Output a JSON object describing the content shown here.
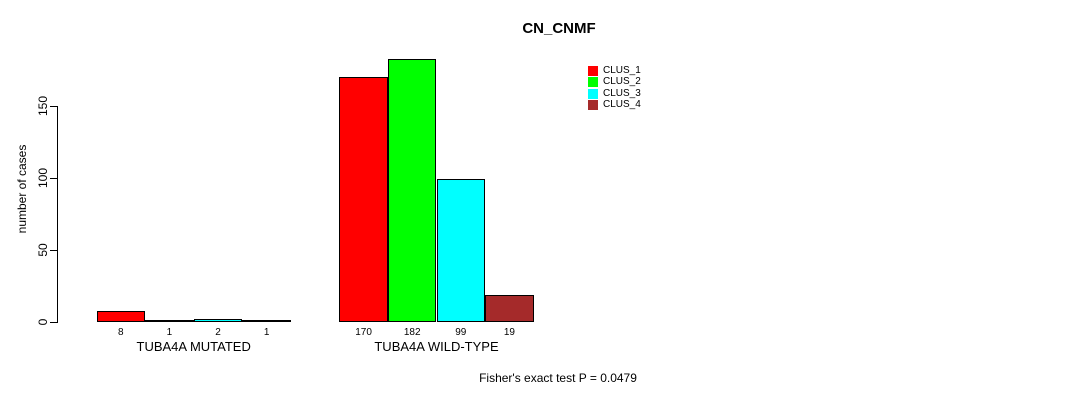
{
  "chart_data": {
    "type": "bar",
    "title": "CN_CNMF",
    "ylabel": "number of cases",
    "xlabel": "",
    "categories": [
      "TUBA4A MUTATED",
      "TUBA4A WILD-TYPE"
    ],
    "series": [
      {
        "name": "CLUS_1",
        "color": "#FF0000",
        "values": [
          8,
          170
        ]
      },
      {
        "name": "CLUS_2",
        "color": "#00FF00",
        "values": [
          1,
          182
        ]
      },
      {
        "name": "CLUS_3",
        "color": "#00FFFF",
        "values": [
          2,
          99
        ]
      },
      {
        "name": "CLUS_4",
        "color": "#A52A2A",
        "values": [
          1,
          19
        ]
      }
    ],
    "yticks": [
      0,
      50,
      100,
      150
    ],
    "ylim": [
      0,
      190
    ],
    "grid": false,
    "bar_value_labels": true,
    "legend_position": "top-right",
    "annotation": "Fisher's exact test P = 0.0479"
  }
}
